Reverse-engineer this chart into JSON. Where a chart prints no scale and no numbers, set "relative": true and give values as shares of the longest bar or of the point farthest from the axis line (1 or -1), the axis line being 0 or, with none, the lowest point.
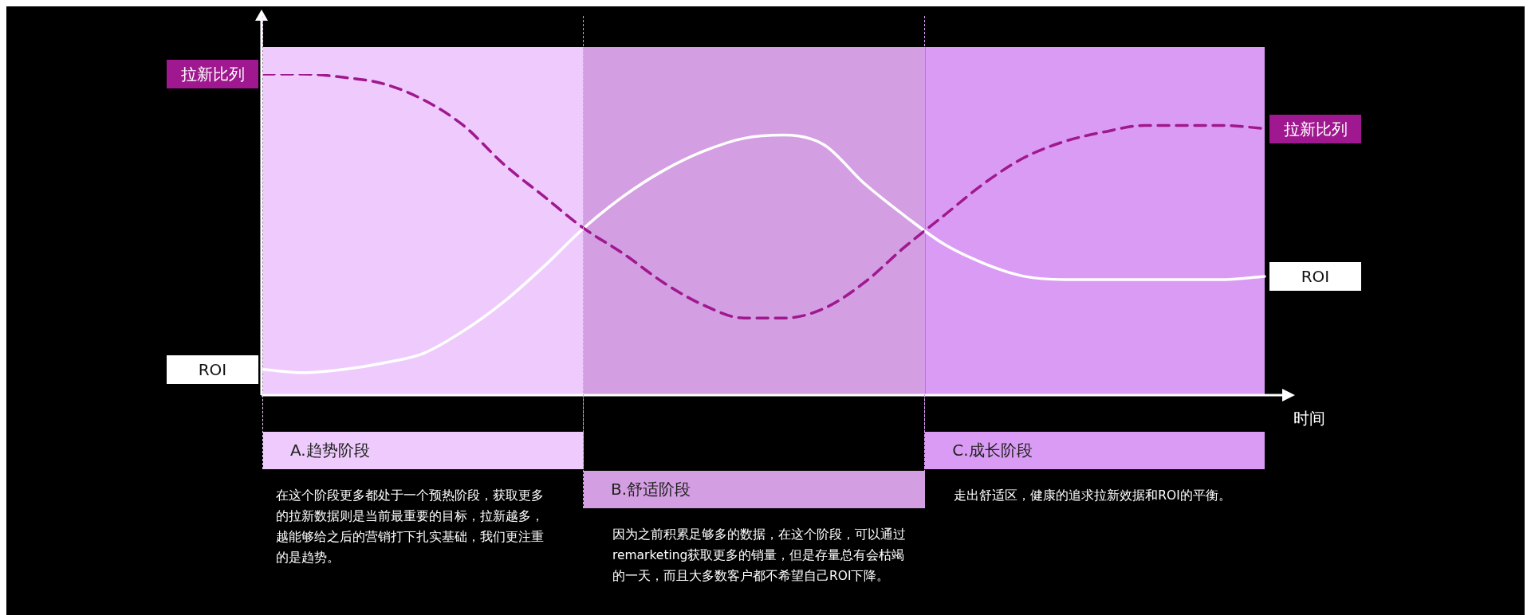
{
  "chart_data": {
    "type": "line",
    "relative": true,
    "xlabel": "时间",
    "legend": false,
    "grid": false,
    "marker": "none",
    "categories": [
      null,
      null,
      null,
      null,
      null,
      null,
      null,
      null,
      null,
      null,
      null,
      null,
      null,
      null,
      null,
      null,
      null,
      null,
      null,
      null,
      null,
      null,
      null,
      null,
      null,
      null
    ],
    "series": [
      {
        "name": "拉新比列",
        "color": "#a0188f",
        "line_style": "dashed",
        "values": [
          1.0,
          1.0,
          0.99,
          0.97,
          0.92,
          0.84,
          0.72,
          0.62,
          0.52,
          0.44,
          0.35,
          0.28,
          0.24,
          0.24,
          0.27,
          0.35,
          0.46,
          0.56,
          0.66,
          0.74,
          0.79,
          0.82,
          0.84,
          0.84,
          0.84,
          0.83
        ]
      },
      {
        "name": "ROI",
        "color": "#ffffff",
        "line_style": "solid",
        "values": [
          0.08,
          0.07,
          0.08,
          0.1,
          0.13,
          0.2,
          0.29,
          0.4,
          0.52,
          0.62,
          0.7,
          0.76,
          0.8,
          0.81,
          0.78,
          0.66,
          0.56,
          0.47,
          0.41,
          0.37,
          0.36,
          0.36,
          0.36,
          0.36,
          0.36,
          0.37
        ]
      }
    ],
    "annotations": [
      "A.趋势阶段",
      "在这个阶段更多都处于一个预热阶段，获取更多的拉新数据则是当前最重要的目标，拉新越多，越能够给之后的营销打下扎实基础，我们更注重的是趋势。",
      "B.舒适阶段",
      "因为之前积累足够多的数据，在这个阶段，可以通过remarketing获取更多的销量，但是存量总有会枯竭的一天，而且大多数客户都不希望自己ROI下降。",
      "C.成长阶段",
      "走出舒适区，健康的追求拉新效据和ROI的平衡。"
    ]
  }
}
